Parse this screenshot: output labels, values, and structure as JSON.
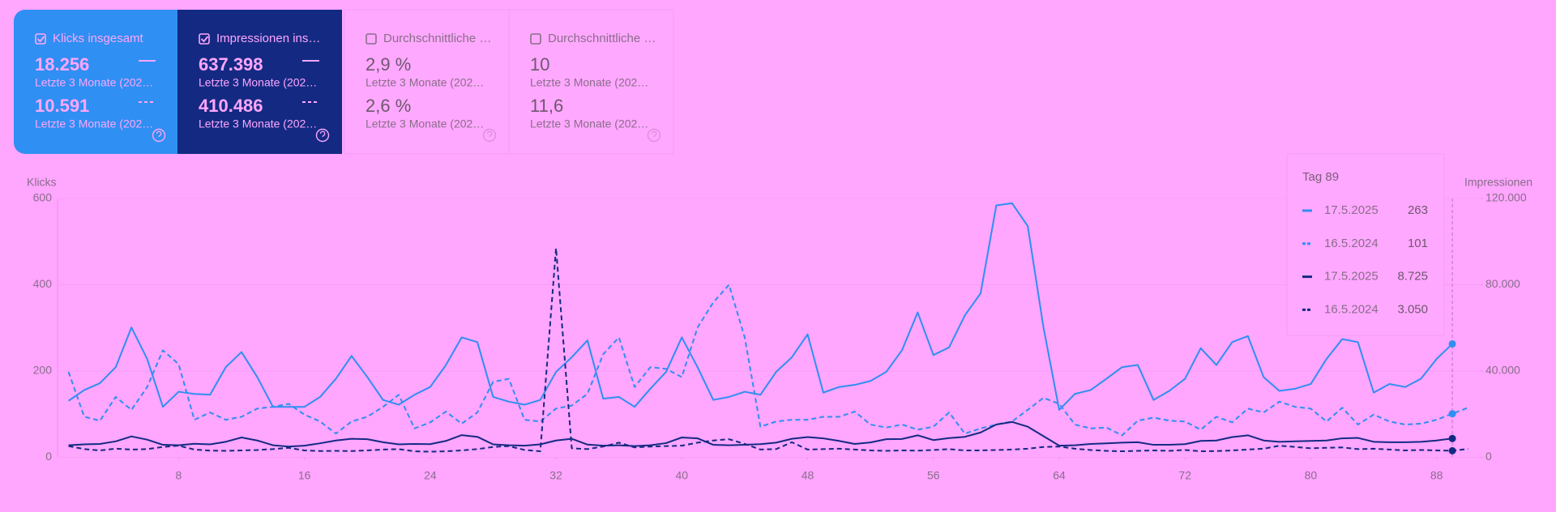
{
  "cards": [
    {
      "title": "Klicks insgesamt",
      "checked": true,
      "value": "18.256",
      "period": "Letzte 3 Monate (202…",
      "compare_value": "10.591",
      "compare_period": "Letzte 3 Monate (202…"
    },
    {
      "title": "Impressionen ins…",
      "checked": true,
      "value": "637.398",
      "period": "Letzte 3 Monate (202…",
      "compare_value": "410.486",
      "compare_period": "Letzte 3 Monate (202…"
    },
    {
      "title": "Durchschnittliche …",
      "checked": false,
      "value": "2,9 %",
      "period": "Letzte 3 Monate (202…",
      "compare_value": "2,6 %",
      "compare_period": "Letzte 3 Monate (202…"
    },
    {
      "title": "Durchschnittliche …",
      "checked": false,
      "value": "10",
      "period": "Letzte 3 Monate (202…",
      "compare_value": "11,6",
      "compare_period": "Letzte 3 Monate (202…"
    }
  ],
  "chart_data": {
    "type": "line",
    "y_label": "Klicks",
    "y2_label": "Impressionen",
    "x": [
      1,
      2,
      3,
      4,
      5,
      6,
      7,
      8,
      9,
      10,
      11,
      12,
      13,
      14,
      15,
      16,
      17,
      18,
      19,
      20,
      21,
      22,
      23,
      24,
      25,
      26,
      27,
      28,
      29,
      30,
      31,
      32,
      33,
      34,
      35,
      36,
      37,
      38,
      39,
      40,
      41,
      42,
      43,
      44,
      45,
      46,
      47,
      48,
      49,
      50,
      51,
      52,
      53,
      54,
      55,
      56,
      57,
      58,
      59,
      60,
      61,
      62,
      63,
      64,
      65,
      66,
      67,
      68,
      69,
      70,
      71,
      72,
      73,
      74,
      75,
      76,
      77,
      78,
      79,
      80,
      81,
      82,
      83,
      84,
      85,
      86,
      87,
      88,
      89,
      90
    ],
    "xlim": [
      0.3,
      90.8
    ],
    "xticks": [
      8,
      16,
      24,
      32,
      40,
      48,
      56,
      64,
      72,
      80,
      88
    ],
    "ylim": [
      0,
      600
    ],
    "yticks": [
      0,
      200,
      400,
      600
    ],
    "y2lim": [
      0,
      120000
    ],
    "y2ticks": [
      0,
      {
        "value": 40000,
        "label": "40.000"
      },
      {
        "value": 80000,
        "label": "80.000"
      },
      {
        "value": 120000,
        "label": "120.000"
      }
    ],
    "series": [
      {
        "color": "#2f8ff2",
        "dashed": false,
        "values": [
          131,
          156,
          172,
          209,
          301,
          228,
          117,
          152,
          147,
          145,
          209,
          244,
          186,
          117,
          117,
          117,
          140,
          182,
          235,
          186,
          133,
          122,
          145,
          163,
          214,
          278,
          267,
          140,
          129,
          122,
          133,
          198,
          232,
          271,
          136,
          140,
          117,
          159,
          198,
          278,
          209,
          133,
          140,
          152,
          145,
          198,
          232,
          285,
          150,
          163,
          168,
          177,
          198,
          248,
          336,
          237,
          255,
          329,
          380,
          584,
          589,
          536,
          301,
          110,
          147,
          156,
          182,
          209,
          214,
          133,
          154,
          182,
          253,
          214,
          267,
          281,
          186,
          154,
          159,
          170,
          228,
          274,
          267,
          150,
          170,
          163,
          182,
          228,
          263,
          null
        ]
      },
      {
        "color": "#2f8ff2",
        "dashed": true,
        "values": [
          198,
          94,
          85,
          140,
          110,
          163,
          248,
          216,
          87,
          104,
          87,
          94,
          113,
          117,
          124,
          99,
          83,
          55,
          83,
          94,
          117,
          145,
          67,
          81,
          106,
          78,
          104,
          175,
          182,
          87,
          83,
          113,
          120,
          147,
          239,
          278,
          163,
          209,
          205,
          186,
          301,
          359,
          400,
          278,
          71,
          83,
          87,
          87,
          94,
          94,
          106,
          76,
          69,
          76,
          64,
          71,
          104,
          55,
          67,
          76,
          83,
          110,
          138,
          124,
          76,
          67,
          69,
          51,
          85,
          92,
          85,
          83,
          64,
          94,
          81,
          113,
          104,
          129,
          117,
          113,
          83,
          115,
          76,
          99,
          83,
          76,
          78,
          87,
          101,
          115
        ]
      },
      {
        "color": "#142a82",
        "dashed": false,
        "axis": "y2",
        "values": [
          5600,
          6000,
          6200,
          7400,
          9700,
          8200,
          5800,
          5600,
          6300,
          6000,
          7200,
          9200,
          7800,
          5600,
          5000,
          5400,
          6500,
          7800,
          8600,
          8400,
          7000,
          6000,
          6200,
          6100,
          7600,
          10300,
          9500,
          6000,
          5600,
          5400,
          6000,
          7800,
          8600,
          5900,
          5400,
          5600,
          5200,
          5600,
          6600,
          9200,
          8800,
          5800,
          5600,
          5800,
          6100,
          6800,
          8600,
          9400,
          8800,
          7600,
          6200,
          6900,
          8400,
          8500,
          10200,
          8000,
          8900,
          9500,
          11500,
          15200,
          16400,
          14200,
          9800,
          5400,
          5600,
          6200,
          6500,
          6800,
          7000,
          5800,
          5800,
          6100,
          7600,
          7800,
          9400,
          10200,
          7800,
          7200,
          7400,
          7600,
          7800,
          8800,
          9000,
          7200,
          7000,
          7000,
          7200,
          7800,
          8725,
          null
        ]
      },
      {
        "color": "#142a82",
        "dashed": true,
        "axis": "y2",
        "values": [
          5200,
          3800,
          3200,
          4000,
          3600,
          3800,
          4800,
          5400,
          3600,
          3100,
          3000,
          3200,
          3400,
          3800,
          4400,
          3200,
          2900,
          3000,
          2900,
          3200,
          3600,
          3800,
          2800,
          2600,
          2800,
          3200,
          3800,
          4800,
          5200,
          3400,
          2800,
          97000,
          4200,
          3800,
          5000,
          6800,
          4600,
          5000,
          5200,
          5400,
          6800,
          7800,
          8400,
          6200,
          3600,
          3800,
          7000,
          3600,
          3800,
          4000,
          3600,
          3200,
          3000,
          3200,
          3100,
          3400,
          3800,
          3200,
          3200,
          3400,
          3600,
          4000,
          4800,
          5000,
          4000,
          3400,
          3000,
          2800,
          3000,
          3200,
          3000,
          3400,
          2800,
          2900,
          3200,
          3600,
          4000,
          5400,
          4800,
          4200,
          4400,
          4600,
          3800,
          4000,
          3600,
          3200,
          3400,
          3200,
          3050,
          3900
        ]
      }
    ]
  },
  "tooltip": {
    "title": "Tag 89",
    "rows": [
      {
        "label": "17.5.2025",
        "value": "263"
      },
      {
        "label": "16.5.2024",
        "value": "101"
      },
      {
        "label": "17.5.2025",
        "value": "8.725"
      },
      {
        "label": "16.5.2024",
        "value": "3.050"
      }
    ]
  }
}
